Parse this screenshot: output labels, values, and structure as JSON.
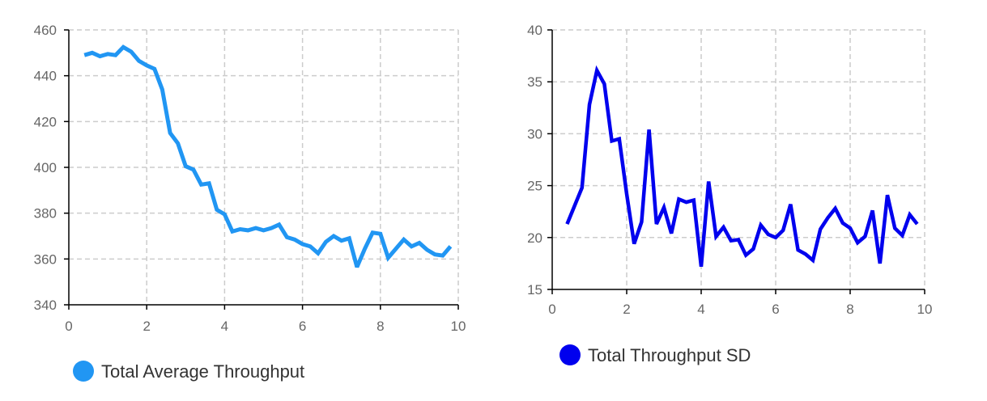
{
  "chart_data": [
    {
      "type": "line",
      "title": "",
      "xlabel": "",
      "ylabel": "",
      "xlim": [
        0,
        10
      ],
      "ylim": [
        340,
        460
      ],
      "xticks": [
        "0",
        "2",
        "4",
        "6",
        "8",
        "10"
      ],
      "yticks": [
        "340",
        "360",
        "380",
        "400",
        "420",
        "440",
        "460"
      ],
      "grid": true,
      "legend_position": "bottom-left",
      "series": [
        {
          "name": "Total Average Throughput",
          "color": "#2196F3",
          "x": [
            0.4,
            0.6,
            0.8,
            1.0,
            1.2,
            1.4,
            1.6,
            1.8,
            2.0,
            2.2,
            2.4,
            2.6,
            2.8,
            3.0,
            3.2,
            3.4,
            3.6,
            3.8,
            4.0,
            4.2,
            4.4,
            4.6,
            4.8,
            5.0,
            5.2,
            5.4,
            5.6,
            5.8,
            6.0,
            6.2,
            6.4,
            6.6,
            6.8,
            7.0,
            7.2,
            7.4,
            7.6,
            7.8,
            8.0,
            8.2,
            8.4,
            8.6,
            8.8,
            9.0,
            9.2,
            9.4,
            9.6,
            9.8
          ],
          "y": [
            449,
            450,
            448.5,
            449.5,
            449,
            452.5,
            450.5,
            446.5,
            444.5,
            443,
            434,
            415,
            410.5,
            400.5,
            399,
            392.5,
            393,
            381.5,
            379.5,
            372,
            373,
            372.5,
            373.5,
            372.5,
            373.5,
            375,
            369.5,
            368.5,
            366.5,
            365.5,
            362.5,
            367.5,
            370,
            368,
            369,
            356.5,
            364.5,
            371.5,
            371,
            360.5,
            364.5,
            368.5,
            365.5,
            367,
            364,
            362,
            361.5,
            365.5
          ]
        }
      ]
    },
    {
      "type": "line",
      "title": "",
      "xlabel": "",
      "ylabel": "",
      "xlim": [
        0,
        10
      ],
      "ylim": [
        15,
        40
      ],
      "xticks": [
        "0",
        "2",
        "4",
        "6",
        "8",
        "10"
      ],
      "yticks": [
        "15",
        "20",
        "25",
        "30",
        "35",
        "40"
      ],
      "grid": true,
      "legend_position": "bottom-left",
      "series": [
        {
          "name": "Total Throughput SD",
          "color": "#0000EE",
          "x": [
            0.4,
            0.8,
            1.0,
            1.2,
            1.4,
            1.6,
            1.8,
            2.0,
            2.2,
            2.4,
            2.6,
            2.8,
            3.0,
            3.2,
            3.4,
            3.6,
            3.8,
            4.0,
            4.2,
            4.4,
            4.6,
            4.8,
            5.0,
            5.2,
            5.4,
            5.6,
            5.8,
            6.0,
            6.2,
            6.4,
            6.6,
            6.8,
            7.0,
            7.2,
            7.4,
            7.6,
            7.8,
            8.0,
            8.2,
            8.4,
            8.6,
            8.8,
            9.0,
            9.2,
            9.4,
            9.6,
            9.8
          ],
          "y": [
            21.3,
            24.8,
            32.8,
            36.1,
            34.8,
            29.3,
            29.5,
            24.2,
            19.4,
            21.5,
            30.4,
            21.3,
            22.9,
            20.4,
            23.7,
            23.4,
            23.6,
            17.2,
            25.4,
            20.1,
            21,
            19.7,
            19.8,
            18.3,
            18.9,
            21.2,
            20.3,
            20,
            20.7,
            23.2,
            18.8,
            18.4,
            17.8,
            20.8,
            21.9,
            22.8,
            21.4,
            20.9,
            19.5,
            20.1,
            22.6,
            17.5,
            24.1,
            20.9,
            20.2,
            22.2,
            21.3
          ]
        }
      ]
    }
  ]
}
